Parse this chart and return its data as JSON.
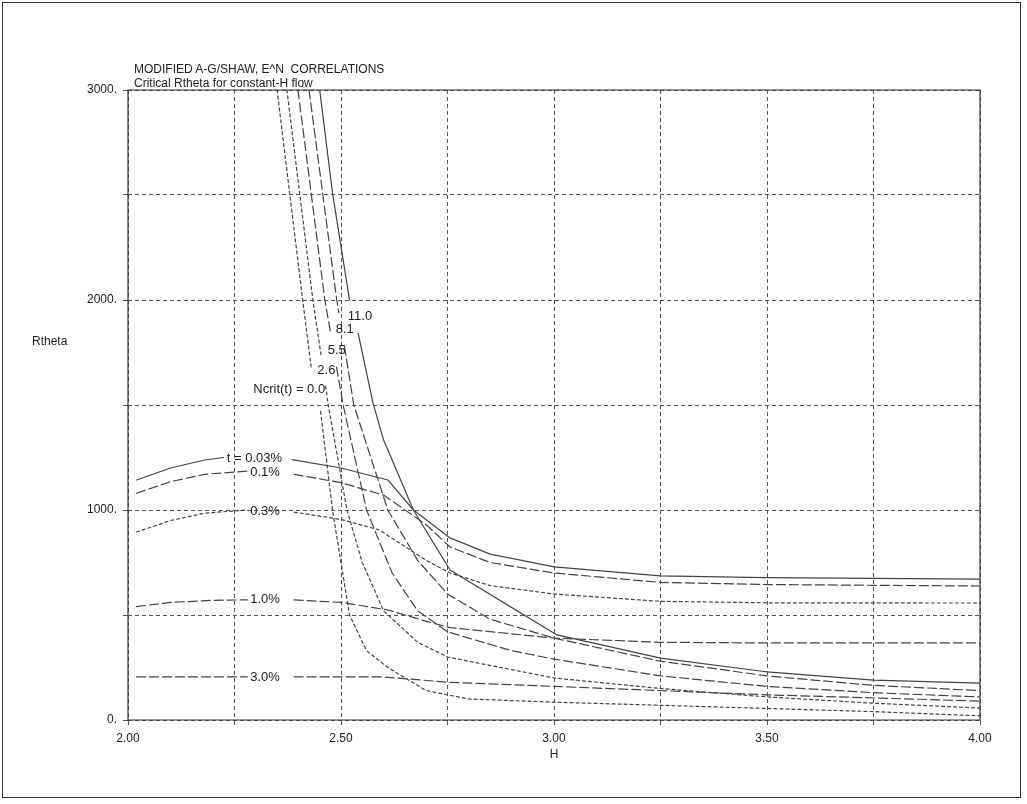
{
  "chart_data": {
    "type": "line",
    "title": "MODIFIED A-G/SHAW, E^N  CORRELATIONS",
    "subtitle": "Critical Rtheta for constant-H flow",
    "xlabel": "H",
    "ylabel": "Rtheta",
    "xlim": [
      2,
      4
    ],
    "ylim": [
      0,
      3000
    ],
    "xticks": [
      {
        "value": 2,
        "label": "2.00"
      },
      {
        "value": 2.25,
        "label": null
      },
      {
        "value": 2.5,
        "label": "2.50"
      },
      {
        "value": 2.75,
        "label": null
      },
      {
        "value": 3,
        "label": "3.00"
      },
      {
        "value": 3.25,
        "label": null
      },
      {
        "value": 3.5,
        "label": "3.50"
      },
      {
        "value": 3.75,
        "label": null
      },
      {
        "value": 4,
        "label": "4.00"
      }
    ],
    "yticks": [
      {
        "value": 0,
        "label": "0."
      },
      {
        "value": 500,
        "label": null
      },
      {
        "value": 1000,
        "label": "1000."
      },
      {
        "value": 1500,
        "label": null
      },
      {
        "value": 2000,
        "label": "2000."
      },
      {
        "value": 2500,
        "label": null
      },
      {
        "value": 3000,
        "label": "3000."
      }
    ],
    "grid": true,
    "marker": "none",
    "series": [
      {
        "color": "#444444",
        "line_style": "dotted",
        "x": [
          2.35,
          2.41,
          2.43,
          2.44,
          2.452,
          2.48,
          2.52,
          2.56,
          2.61,
          2.7,
          2.8,
          3.0,
          3.25,
          3.5,
          3.75,
          4.0
        ],
        "values": [
          3000,
          2000,
          1680,
          null,
          1470,
          1000,
          500,
          330,
          250,
          140,
          100,
          85,
          70,
          55,
          40,
          20
        ]
      },
      {
        "color": "#444444",
        "line_style": "dotted",
        "x": [
          2.373,
          2.434,
          2.453,
          2.458,
          2.464,
          2.47,
          2.514,
          2.55,
          2.6,
          2.68,
          2.75,
          3.0,
          3.25,
          3.5,
          3.75,
          4.0
        ],
        "values": [
          3000,
          2000,
          1740,
          null,
          1590,
          1500,
          1000,
          750,
          520,
          370,
          300,
          200,
          150,
          110,
          80,
          57
        ]
      },
      {
        "color": "#444444",
        "line_style": "dashed",
        "x": [
          2.399,
          2.462,
          2.476,
          2.483,
          2.4895,
          2.505,
          2.56,
          2.62,
          2.68,
          2.75,
          2.9,
          3.0,
          3.25,
          3.5,
          3.75,
          4.0
        ],
        "values": [
          3000,
          2000,
          1840,
          null,
          1680,
          1500,
          1000,
          700,
          520,
          420,
          330,
          290,
          210,
          160,
          130,
          110
        ]
      },
      {
        "color": "#444444",
        "line_style": "dashed",
        "x": [
          2.425,
          2.49,
          2.495,
          2.5,
          2.508,
          2.53,
          2.61,
          2.68,
          2.75,
          2.85,
          3.0,
          3.25,
          3.5,
          3.75,
          4.0
        ],
        "values": [
          3000,
          2000,
          1940,
          null,
          1780,
          1500,
          1000,
          760,
          600,
          480,
          390,
          280,
          210,
          165,
          140
        ]
      },
      {
        "color": "#444444",
        "line_style": "solid",
        "x": [
          2.45,
          2.48,
          2.52,
          2.525,
          2.54,
          2.575,
          2.6,
          2.67,
          2.756,
          3.007,
          3.25,
          3.5,
          3.75,
          4.0
        ],
        "values": [
          3000,
          2510,
          2000,
          null,
          1843,
          1510,
          1333,
          1000,
          714,
          405,
          295,
          229,
          190,
          176
        ]
      },
      {
        "color": "#444444",
        "line_style": "solid",
        "x": [
          2.02,
          2.1,
          2.18,
          2.225,
          2.3,
          2.385,
          2.5,
          2.61,
          2.67,
          2.756,
          2.85,
          3.0,
          3.25,
          3.5,
          4.0
        ],
        "values": [
          1143,
          1200,
          1238,
          1250,
          null,
          1240,
          1200,
          1143,
          1000,
          867,
          790,
          729,
          686,
          678,
          671
        ]
      },
      {
        "color": "#444444",
        "line_style": "dashed",
        "x": [
          2.02,
          2.1,
          2.18,
          2.28,
          2.33,
          2.39,
          2.5,
          2.6,
          2.7,
          2.756,
          2.85,
          3.0,
          3.25,
          3.5,
          4.0
        ],
        "values": [
          1080,
          1135,
          1170,
          1185,
          null,
          1170,
          1130,
          1071,
          930,
          824,
          750,
          700,
          655,
          645,
          638
        ]
      },
      {
        "color": "#444444",
        "line_style": "dotted",
        "x": [
          2.02,
          2.1,
          2.18,
          2.28,
          2.33,
          2.39,
          2.5,
          2.59,
          2.7,
          2.756,
          2.85,
          3.0,
          3.25,
          3.5,
          4.0
        ],
        "values": [
          895,
          950,
          985,
          1000,
          null,
          990,
          955,
          905,
          760,
          700,
          640,
          600,
          565,
          558,
          557
        ]
      },
      {
        "color": "#444444",
        "line_style": "dashed",
        "x": [
          2.02,
          2.1,
          2.2,
          2.28,
          2.33,
          2.39,
          2.5,
          2.61,
          2.7,
          2.756,
          3.0,
          3.25,
          3.5,
          4.0
        ],
        "values": [
          540,
          560,
          570,
          572,
          null,
          572,
          560,
          524,
          470,
          440,
          390,
          370,
          367,
          367
        ]
      },
      {
        "color": "#444444",
        "line_style": "dashed",
        "x": [
          2.02,
          2.28,
          2.33,
          2.39,
          2.6,
          2.75,
          3.0,
          3.5,
          4.0
        ],
        "values": [
          205,
          205,
          null,
          205,
          205,
          180,
          160,
          120,
          90
        ]
      }
    ],
    "annotations": [
      "Ncrit(t) = 0.0",
      "2.6",
      "5.5",
      "8.1",
      "11.0",
      "t = 0.03%",
      "0.1%",
      "0.3%",
      "1.0%",
      "3.0%"
    ]
  }
}
